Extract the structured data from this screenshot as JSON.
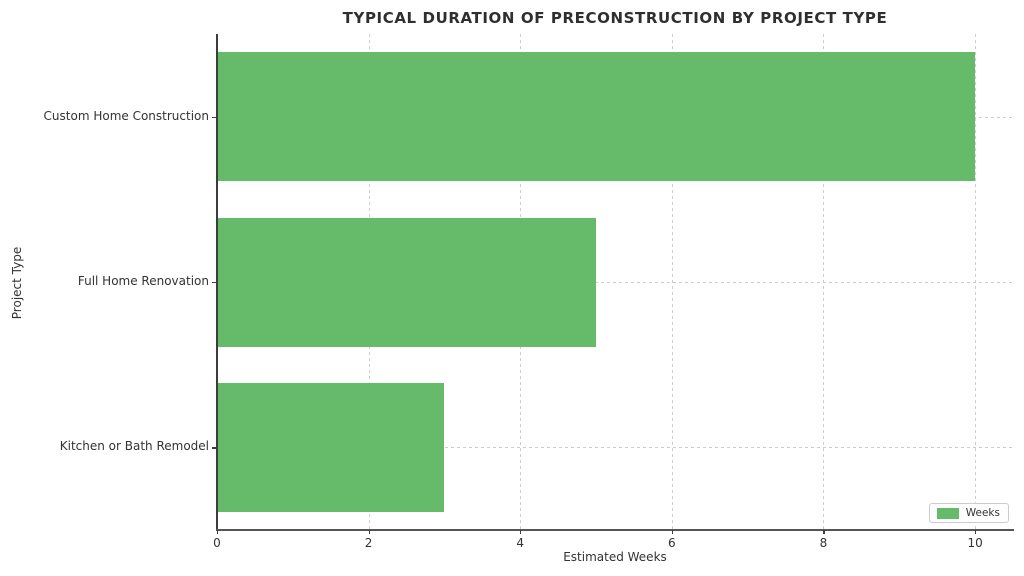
{
  "title": "TYPICAL DURATION OF PRECONSTRUCTION BY PROJECT TYPE",
  "chart_data": {
    "type": "bar",
    "orientation": "horizontal",
    "title": "TYPICAL DURATION OF PRECONSTRUCTION BY PROJECT TYPE",
    "categories": [
      "Custom Home Construction",
      "Full Home Renovation",
      "Kitchen or Bath Remodel"
    ],
    "series": [
      {
        "name": "Weeks",
        "values": [
          10,
          5,
          3
        ]
      }
    ],
    "xlabel": "Estimated Weeks",
    "ylabel": "Project Type",
    "xlim": [
      0,
      10.5
    ],
    "xticks": [
      0,
      2,
      4,
      6,
      8,
      10
    ],
    "grid": true,
    "grid_style": "dashed",
    "legend": {
      "label": "Weeks",
      "position": "lower right"
    },
    "colors": {
      "bar": "#66bb6a",
      "grid": "#cccccc",
      "axis": "#3d3d3d",
      "text": "#333333",
      "background": "#ffffff"
    }
  }
}
